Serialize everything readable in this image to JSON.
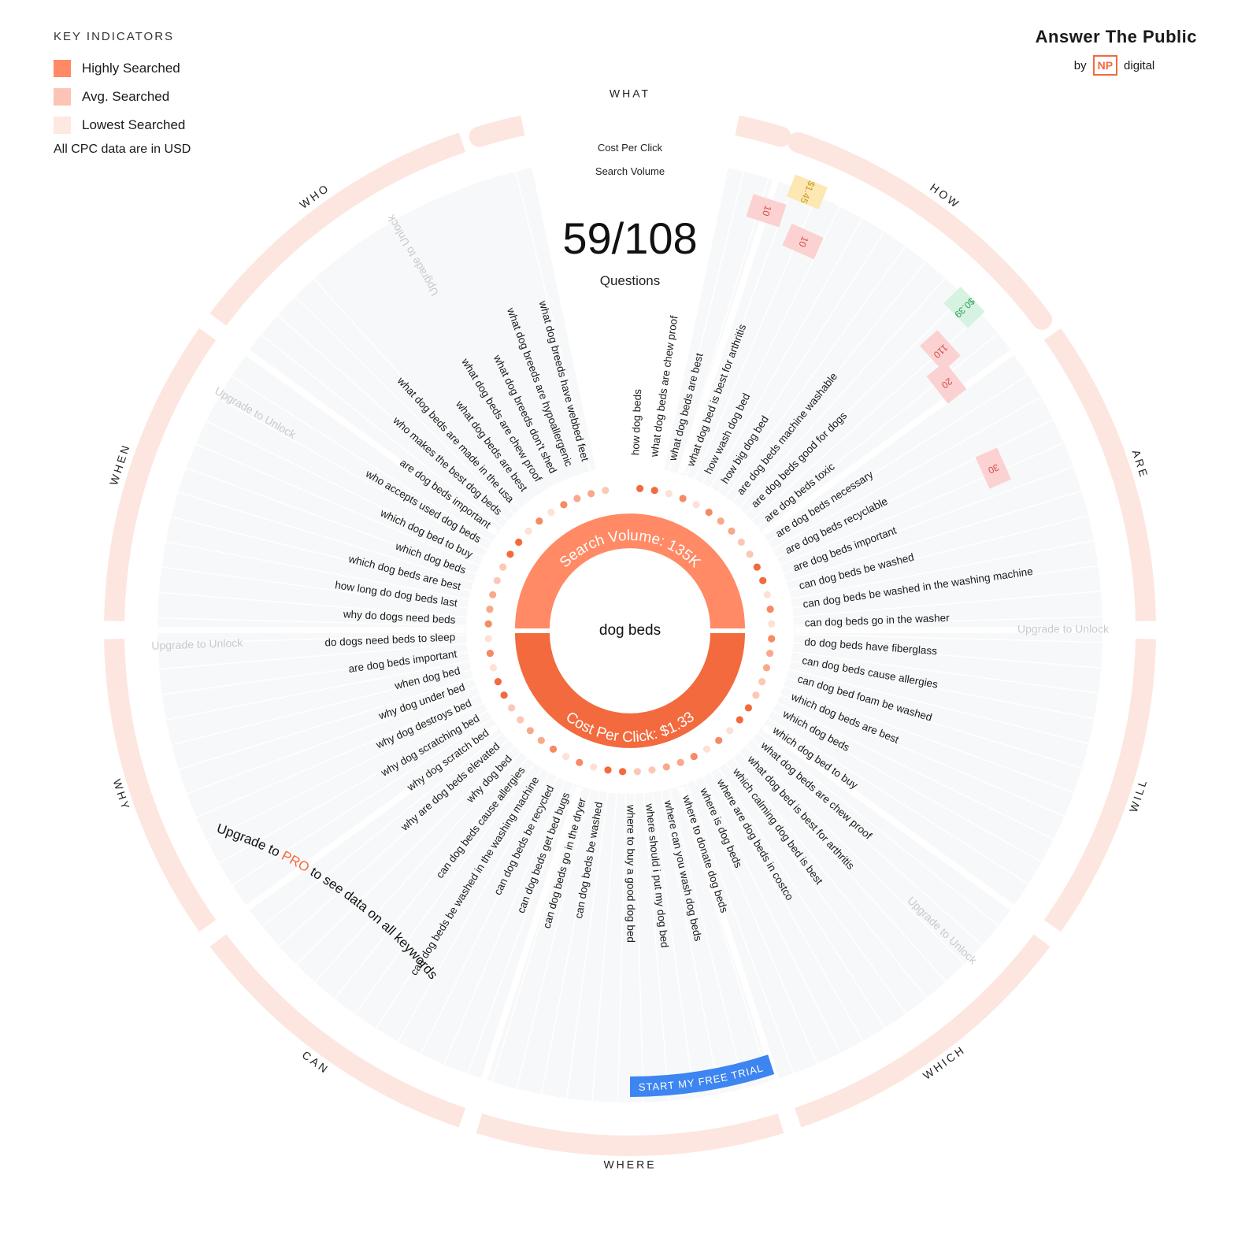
{
  "legend": {
    "title": "KEY INDICATORS",
    "items": [
      {
        "label": "Highly Searched",
        "color": "#ff8a65"
      },
      {
        "label": "Avg. Searched",
        "color": "#fbc4b4"
      },
      {
        "label": "Lowest Searched",
        "color": "#fde8e2"
      }
    ],
    "note": "All CPC data are in USD"
  },
  "brand": {
    "title": "Answer The Public",
    "by": "by",
    "np": "NP",
    "digital": "digital"
  },
  "header": {
    "cpc_label": "Cost Per Click",
    "sv_label": "Search Volume"
  },
  "count": {
    "value": "59/108",
    "label": "Questions"
  },
  "center": {
    "keyword": "dog beds",
    "search_volume": "Search Volume: 135K",
    "cpc": "Cost Per Click: $1.33"
  },
  "colors": {
    "high": "#f26a3d",
    "avg": "#ff8a65",
    "low": "#fde8e2",
    "ring": "#fde6df",
    "cta": "#3d85f0"
  },
  "categories": [
    "WHAT",
    "HOW",
    "ARE",
    "WILL",
    "WHICH",
    "WHERE",
    "CAN",
    "WHY",
    "WHEN",
    "WHO"
  ],
  "locked_label": "Upgrade to Unlock",
  "right_labels": [
    "how dog beds",
    "what dog beds are chew proof",
    "what dog beds are best",
    "what dog bed is best for arthritis",
    "how wash dog bed",
    "how big dog bed",
    "are dog beds machine washable",
    "are dog beds good for dogs",
    "are dog beds toxic",
    "are dog beds necessary",
    "are dog beds recyclable",
    "are dog beds important",
    "can dog beds be washed",
    "can dog beds be washed in the washing machine",
    "can dog beds go in the washer",
    "do dog beds have fiberglass",
    "can dog beds cause allergies",
    "can dog bed foam be washed",
    "which dog beds are best",
    "which dog beds",
    "which dog bed to buy",
    "what dog beds are chew proof",
    "what dog bed is best for arthritis",
    "which calming dog bed is best",
    "where are dog beds in costco",
    "where is dog beds",
    "where to donate dog beds",
    "where can you wash dog beds",
    "where should i put my dog bed",
    "where to buy a good dog bed"
  ],
  "left_labels": [
    "what dog breeds have webbed feet",
    "what dog breeds are hypoallergenic",
    "what dog breeds don't shed",
    "what dog beds are chew proof",
    "what dog beds are best",
    "what dog beds are made in the usa",
    "who makes the best dog beds",
    "are dog beds important",
    "who accepts used dog beds",
    "which dog bed to buy",
    "which dog beds",
    "which dog beds are best",
    "how long do dog beds last",
    "why do dogs need beds",
    "do dogs need beds to sleep",
    "are dog beds important",
    "when dog bed",
    "why dog under bed",
    "why dog destroys bed",
    "why dog scratching bed",
    "why dog scratch bed",
    "why are dog beds elevated",
    "why dog bed",
    "can dog beds cause allergies",
    "can dog beds be washed in the washing machine",
    "can dog beds be recycled",
    "can dog beds get bed bugs",
    "can dog beds go in the dryer",
    "can dog beds be washed"
  ],
  "cells": [
    {
      "text": "10",
      "kind": "sv"
    },
    {
      "text": "$1.45",
      "kind": "cpc"
    },
    {
      "text": "10",
      "kind": "sv"
    },
    {
      "text": "$0.39",
      "kind": "cpc-green"
    },
    {
      "text": "110",
      "kind": "sv"
    },
    {
      "text": "20",
      "kind": "sv"
    },
    {
      "text": "30",
      "kind": "sv"
    }
  ],
  "dash": "-",
  "upsell": {
    "pre": "Upgrade to ",
    "pro": "PRO",
    "post": " to see data on all keywords",
    "button": "START MY FREE TRIAL"
  }
}
